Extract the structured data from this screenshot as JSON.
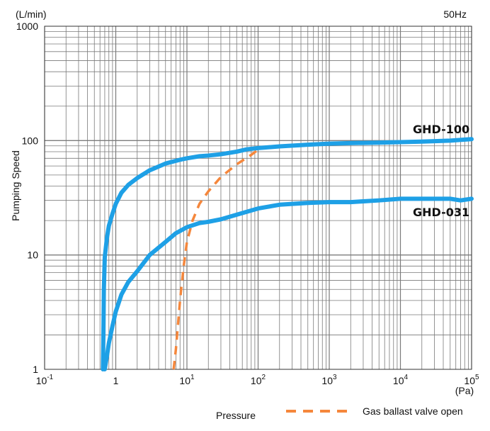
{
  "chart_data": {
    "type": "line",
    "title": "",
    "ylabel": "Pumping Speed",
    "y_unit": "(L/min)",
    "xlabel": "Pressure",
    "x_unit": "(Pa)",
    "frequency": "50Hz",
    "xscale": "log",
    "yscale": "log",
    "xlim": [
      0.1,
      100000
    ],
    "ylim": [
      1,
      1000
    ],
    "grid": true,
    "x_ticks": [
      {
        "base": "10",
        "exp": "-1",
        "value": 0.1
      },
      {
        "base": "1",
        "exp": "",
        "value": 1
      },
      {
        "base": "10",
        "exp": "1",
        "value": 10
      },
      {
        "base": "10",
        "exp": "2",
        "value": 100
      },
      {
        "base": "10",
        "exp": "3",
        "value": 1000
      },
      {
        "base": "10",
        "exp": "4",
        "value": 10000
      },
      {
        "base": "10",
        "exp": "5",
        "value": 100000
      }
    ],
    "y_ticks": [
      {
        "label": "1",
        "value": 1
      },
      {
        "label": "10",
        "value": 10
      },
      {
        "label": "100",
        "value": 100
      },
      {
        "label": "1000",
        "value": 1000
      }
    ],
    "legend": {
      "placement": "bottom-right",
      "label": "Gas ballast valve open"
    },
    "series": [
      {
        "name": "GHD-100",
        "color": "#1ea0e6",
        "style": "solid",
        "points": [
          [
            0.66,
            1.0
          ],
          [
            0.67,
            2.0
          ],
          [
            0.68,
            5.0
          ],
          [
            0.7,
            9.5
          ],
          [
            0.75,
            14
          ],
          [
            0.8,
            18
          ],
          [
            0.9,
            23
          ],
          [
            1.0,
            28
          ],
          [
            1.2,
            35
          ],
          [
            1.5,
            41
          ],
          [
            2,
            47
          ],
          [
            3,
            55
          ],
          [
            5,
            63
          ],
          [
            8,
            68
          ],
          [
            10,
            70
          ],
          [
            15,
            73
          ],
          [
            20,
            74
          ],
          [
            30,
            76
          ],
          [
            50,
            80
          ],
          [
            70,
            84
          ],
          [
            100,
            86
          ],
          [
            200,
            89
          ],
          [
            500,
            92
          ],
          [
            1000,
            94
          ],
          [
            2000,
            95
          ],
          [
            5000,
            96
          ],
          [
            10000,
            97
          ],
          [
            20000,
            98
          ],
          [
            50000,
            100
          ],
          [
            100000,
            103
          ]
        ]
      },
      {
        "name": "GHD-031",
        "color": "#1ea0e6",
        "style": "solid",
        "points": [
          [
            0.7,
            1.0
          ],
          [
            0.75,
            1.3
          ],
          [
            0.8,
            1.7
          ],
          [
            0.9,
            2.4
          ],
          [
            1.0,
            3.2
          ],
          [
            1.2,
            4.5
          ],
          [
            1.5,
            5.8
          ],
          [
            2,
            7.2
          ],
          [
            3,
            10
          ],
          [
            5,
            13
          ],
          [
            7,
            15.5
          ],
          [
            10,
            17.5
          ],
          [
            15,
            19
          ],
          [
            20,
            19.5
          ],
          [
            30,
            20.5
          ],
          [
            50,
            22.5
          ],
          [
            100,
            25.5
          ],
          [
            200,
            27.5
          ],
          [
            500,
            28.5
          ],
          [
            1000,
            29
          ],
          [
            2000,
            29
          ],
          [
            5000,
            30
          ],
          [
            10000,
            31
          ],
          [
            20000,
            31
          ],
          [
            50000,
            31
          ],
          [
            70000,
            30
          ],
          [
            100000,
            31
          ]
        ]
      },
      {
        "name": "Gas ballast valve open",
        "color": "#f5873c",
        "style": "dashed",
        "points": [
          [
            6.5,
            1.0
          ],
          [
            7,
            1.5
          ],
          [
            7.5,
            2.5
          ],
          [
            8,
            4
          ],
          [
            9,
            8
          ],
          [
            10,
            13
          ],
          [
            12,
            20
          ],
          [
            15,
            28
          ],
          [
            20,
            36
          ],
          [
            30,
            48
          ],
          [
            50,
            62
          ],
          [
            80,
            75
          ],
          [
            110,
            87
          ]
        ]
      }
    ]
  }
}
